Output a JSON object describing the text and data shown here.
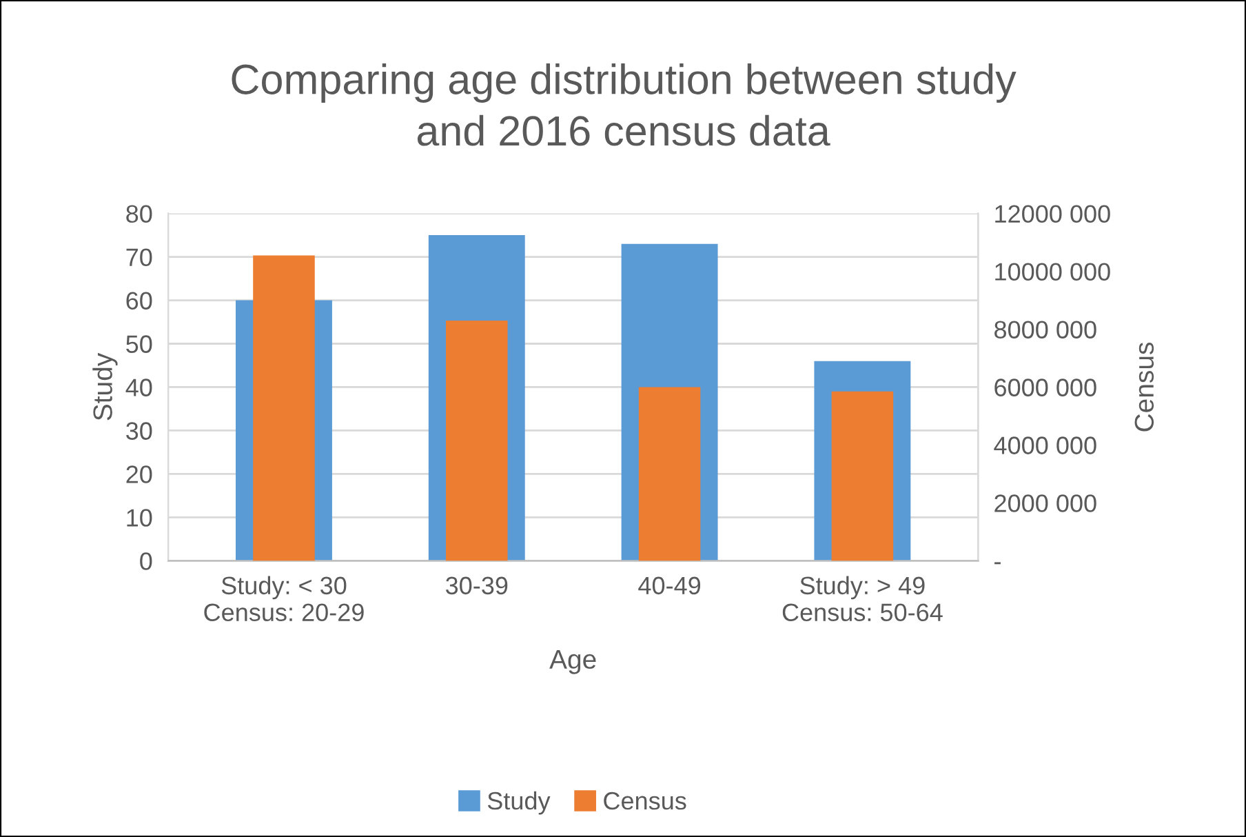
{
  "chart_data": {
    "type": "bar",
    "title": "Comparing age distribution between study\nand 2016 census data",
    "xlabel": "Age",
    "ylabel": "Study",
    "y2label": "Census",
    "categories": [
      "Study: < 30\nCensus: 20-29",
      "30-39",
      "40-49",
      "Study: > 49\nCensus: 50-64"
    ],
    "series": [
      {
        "name": "Study",
        "color": "#5b9bd5",
        "values": [
          60,
          75,
          73,
          46
        ]
      },
      {
        "name": "Census",
        "color": "#ed7d31",
        "axis": "y2",
        "values": [
          10550000,
          8300000,
          6000000,
          5850000
        ]
      }
    ],
    "ylim": [
      0,
      80
    ],
    "yticks": [
      0,
      10,
      20,
      30,
      40,
      50,
      60,
      70,
      80
    ],
    "y2lim": [
      0,
      12000000
    ],
    "y2ticks": [
      {
        "value": 0,
        "label": "-"
      },
      {
        "value": 2000000,
        "label": "2000 000"
      },
      {
        "value": 4000000,
        "label": "4000 000"
      },
      {
        "value": 6000000,
        "label": "6000 000"
      },
      {
        "value": 8000000,
        "label": "8000 000"
      },
      {
        "value": 10000000,
        "label": "10000 000"
      },
      {
        "value": 12000000,
        "label": "12000 000"
      }
    ],
    "grid": "y",
    "legend": "bottom"
  }
}
